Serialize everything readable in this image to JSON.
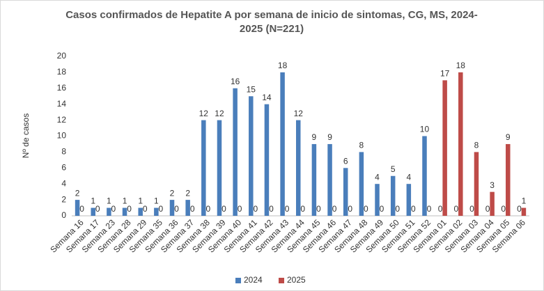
{
  "chart_data": {
    "type": "bar",
    "title": "Casos confirmados de Hepatite A por semana de inicio de sintomas, CG, MS, 2024-2025 (N=221)",
    "ylabel": "Nº de casos",
    "categories": [
      "Semana 16",
      "Semana 17",
      "Semana 23",
      "Semana 28",
      "Semana 29",
      "Semana 35",
      "Semana 36",
      "Semana 37",
      "Semana 38",
      "Semana 39",
      "Semana 40",
      "Semana 41",
      "Semana 42",
      "Semana 43",
      "Semana 44",
      "Semana 45",
      "Semana 46",
      "Semana 47",
      "Semana 48",
      "Semana 49",
      "Semana 50",
      "Semana 51",
      "Semana 52",
      "Semana 01",
      "Semana 02",
      "Semana 03",
      "Semana 04",
      "Semana 05",
      "Semana 06"
    ],
    "series": [
      {
        "name": "2024",
        "color": "#4a7ebb",
        "values": [
          2,
          1,
          1,
          1,
          1,
          1,
          2,
          2,
          12,
          12,
          16,
          15,
          14,
          18,
          12,
          9,
          9,
          6,
          8,
          4,
          5,
          4,
          10,
          0,
          0,
          0,
          0,
          0,
          0
        ]
      },
      {
        "name": "2025",
        "color": "#be4b48",
        "values": [
          0,
          0,
          0,
          0,
          0,
          0,
          0,
          0,
          0,
          0,
          0,
          0,
          0,
          0,
          0,
          0,
          0,
          0,
          0,
          0,
          0,
          0,
          0,
          17,
          18,
          8,
          3,
          9,
          1
        ]
      }
    ],
    "ylim": [
      0,
      20
    ],
    "yticks": [
      0,
      2,
      4,
      6,
      8,
      10,
      12,
      14,
      16,
      18,
      20
    ],
    "grid": false,
    "legend": "bottom"
  }
}
